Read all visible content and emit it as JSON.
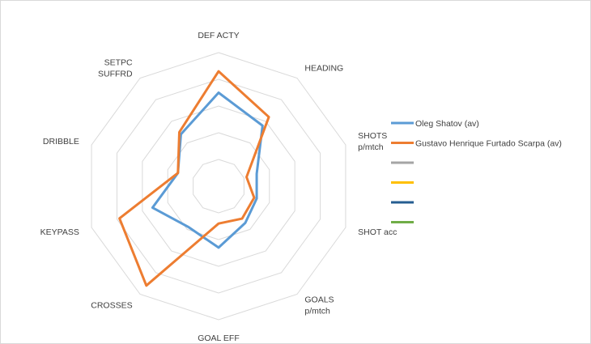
{
  "chart_data": {
    "type": "radar",
    "title": "",
    "axes": [
      "DEF ACTY",
      "HEADING",
      "SHOTS p/mtch",
      "SHOT acc",
      "GOALS p/mtch",
      "GOAL EFF",
      "CROSSES",
      "KEYPASS",
      "DRIBBLE",
      "SETPC SUFFRD"
    ],
    "axis_lines": [
      [
        "DEF ACTY"
      ],
      [
        "HEADING"
      ],
      [
        "SHOTS",
        "p/mtch"
      ],
      [
        "SHOT acc"
      ],
      [
        "GOALS",
        "p/mtch"
      ],
      [
        "GOAL EFF"
      ],
      [
        "CROSSES"
      ],
      [
        "KEYPASS"
      ],
      [
        "DRIBBLE"
      ],
      [
        "SETPC",
        "SUFFRD"
      ]
    ],
    "rlim": [
      0,
      5
    ],
    "rings": 5,
    "series": [
      {
        "name": "Oleg Shatov (av)",
        "color": "#5b9bd5",
        "values": [
          3.5,
          2.8,
          1.5,
          1.5,
          1.7,
          2.3,
          1.9,
          2.6,
          1.6,
          2.4
        ]
      },
      {
        "name": "Gustavo Henrique Furtado Scarpa (av)",
        "color": "#ed7d31",
        "values": [
          4.3,
          3.2,
          1.1,
          1.4,
          1.5,
          1.4,
          4.6,
          3.9,
          1.6,
          2.5
        ]
      },
      {
        "name": "",
        "color": "#a5a5a5",
        "values": []
      },
      {
        "name": "",
        "color": "#ffc000",
        "values": []
      },
      {
        "name": "",
        "color": "#255e91",
        "values": []
      },
      {
        "name": "",
        "color": "#70ad47",
        "values": []
      }
    ],
    "legend_position": "right",
    "grid": true
  }
}
